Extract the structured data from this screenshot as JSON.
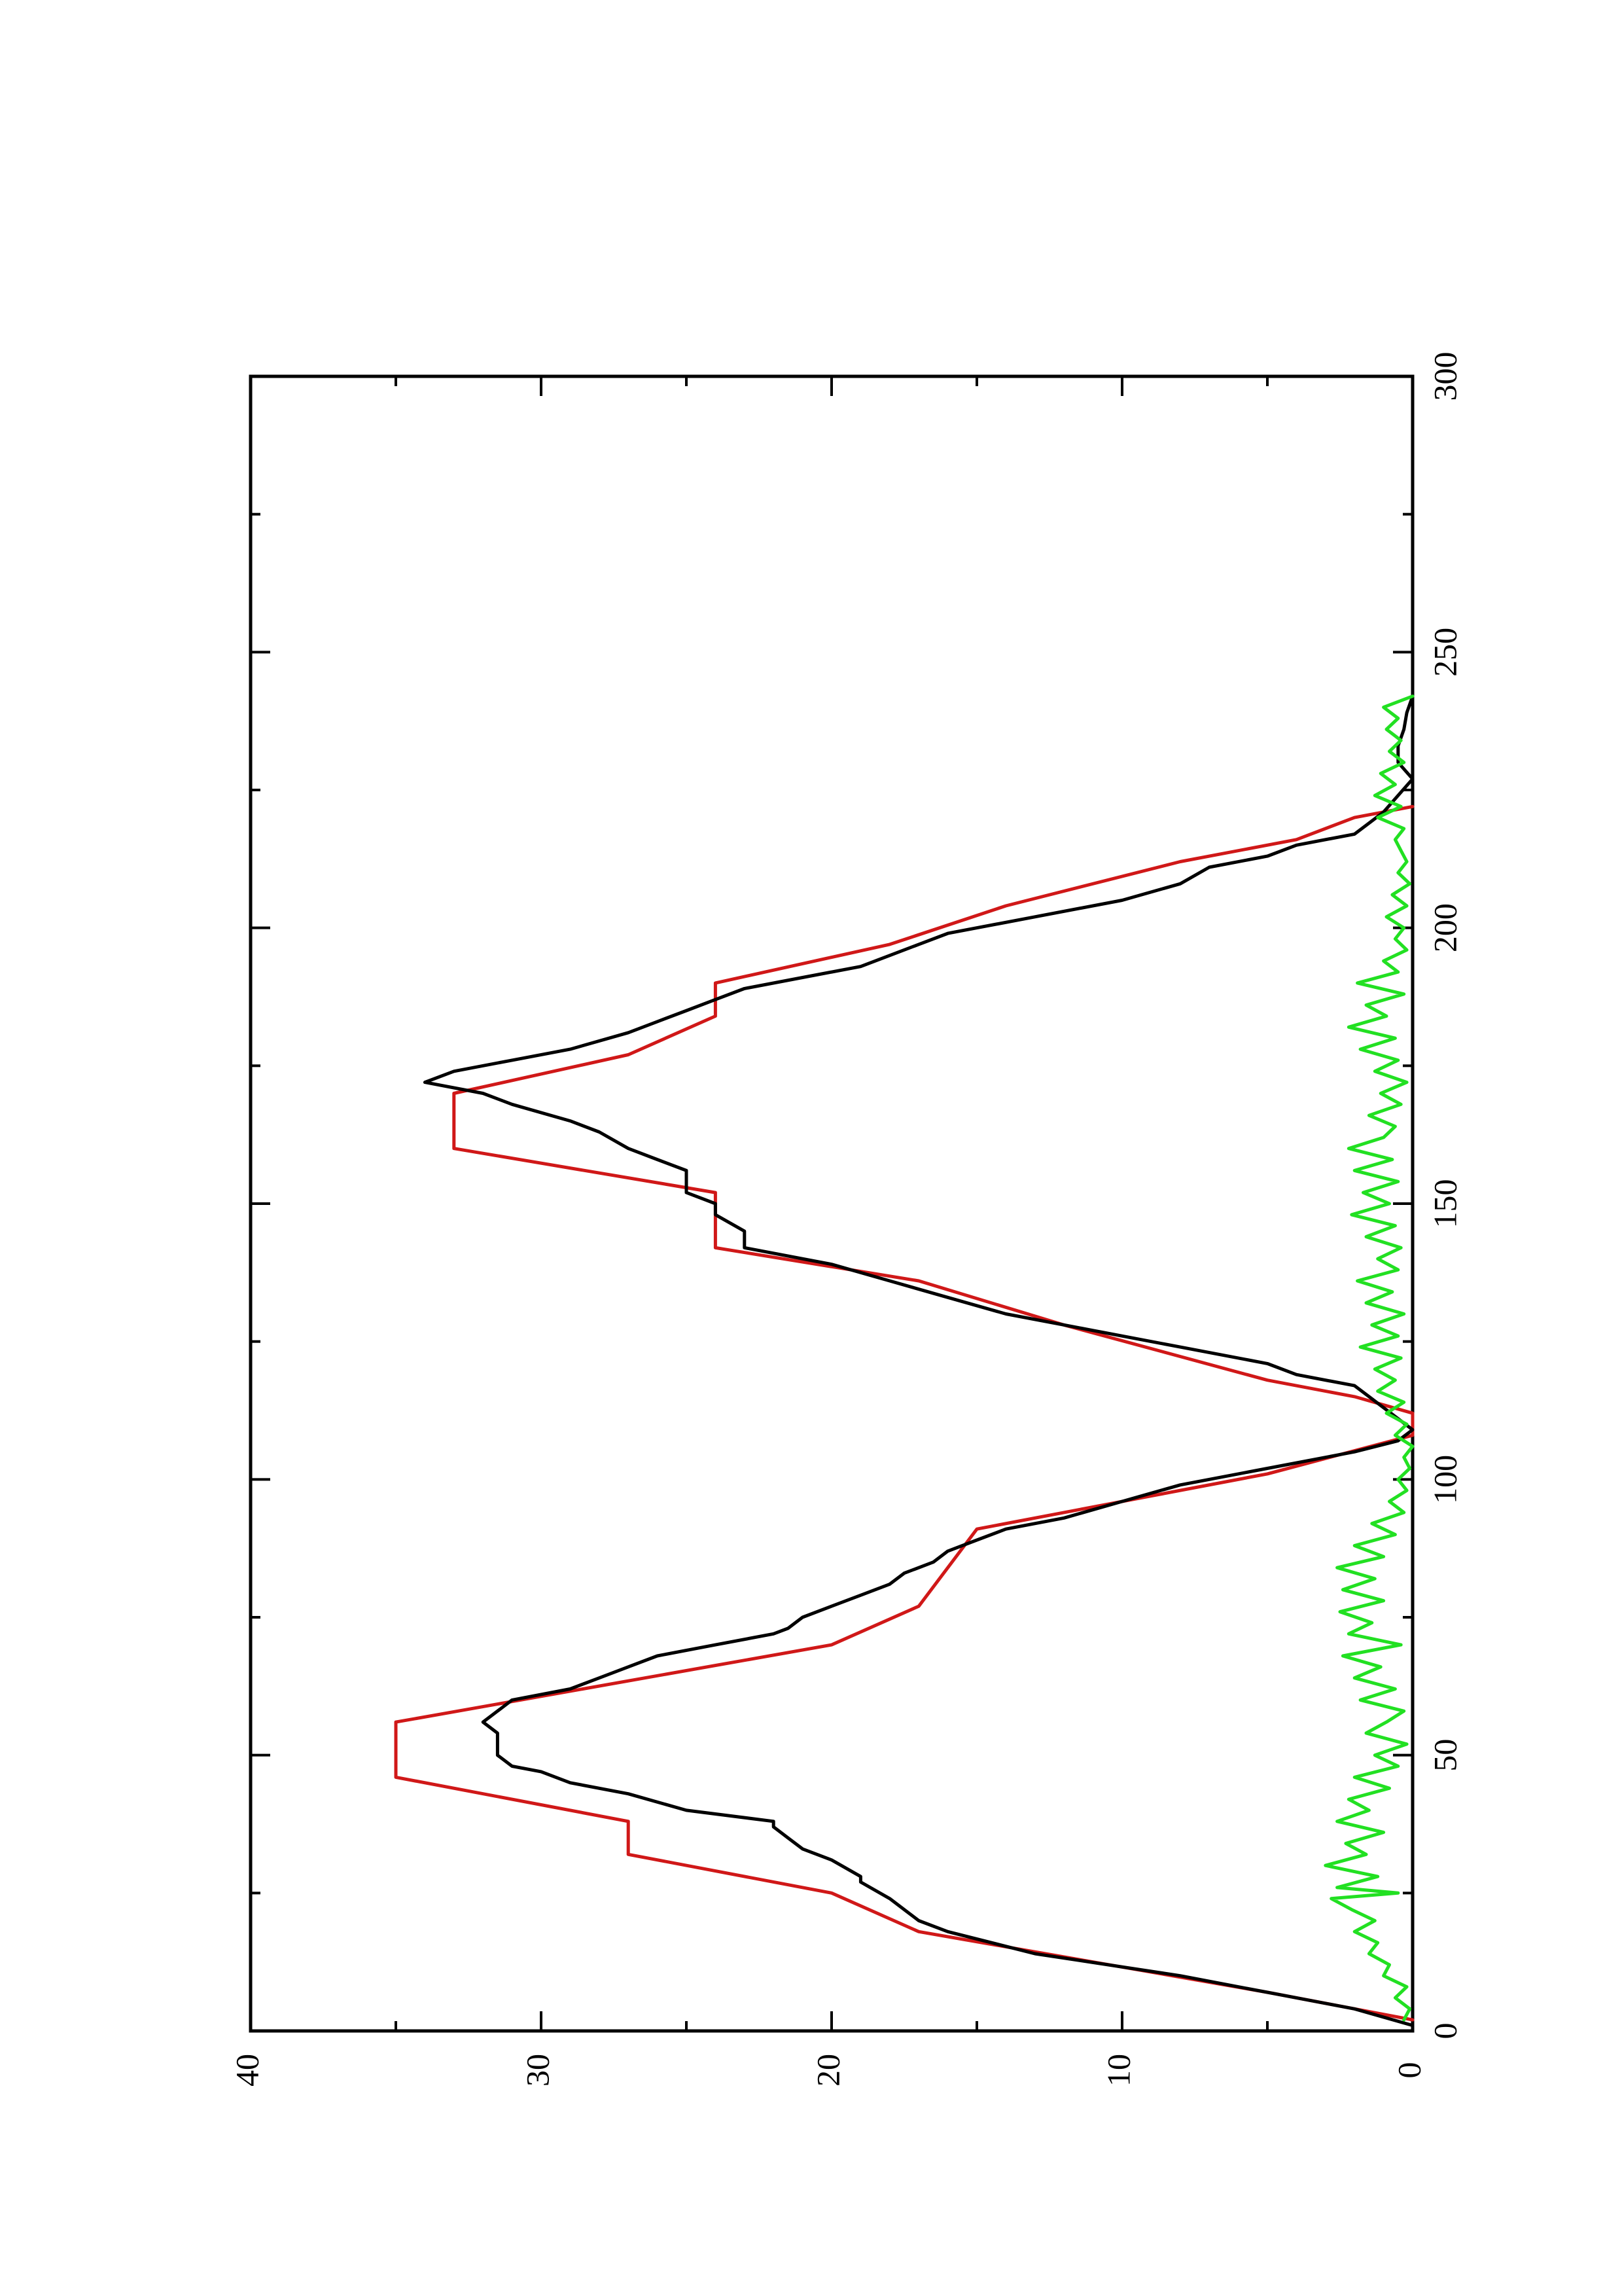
{
  "chart_data": {
    "type": "line",
    "title": "",
    "xlabel": "",
    "ylabel": "",
    "xlim": [
      0,
      300
    ],
    "ylim": [
      0,
      40
    ],
    "x_ticks": [
      0,
      50,
      100,
      150,
      200,
      250,
      300
    ],
    "y_ticks": [
      0,
      10,
      20,
      30,
      40
    ],
    "x_tick_labels": [
      "0",
      "50",
      "100",
      "150",
      "200",
      "250",
      "300"
    ],
    "y_tick_labels": [
      "0",
      "10",
      "20",
      "30",
      "40"
    ],
    "orientation": "rotated 90 degrees counter-clockwise on the page",
    "grid": false,
    "legend": "none",
    "series": [
      {
        "color": "#d01818",
        "step": true,
        "x": [
          2,
          7,
          7,
          18,
          18,
          25,
          25,
          32,
          32,
          38,
          38,
          46,
          46,
          56,
          56,
          70,
          70,
          77,
          77,
          91,
          91,
          101,
          101,
          108,
          112,
          115,
          115,
          118,
          118,
          128,
          128,
          136,
          136,
          142,
          142,
          152,
          152,
          160,
          160,
          170,
          170,
          177,
          177,
          184,
          184,
          190,
          190,
          197,
          197,
          204,
          204,
          212,
          212,
          216,
          216,
          220,
          220,
          222
        ],
        "y": [
          0,
          5,
          5,
          17,
          17,
          20,
          20,
          27,
          27,
          27,
          27,
          35,
          35,
          35,
          35,
          20,
          20,
          17,
          17,
          15,
          15,
          5,
          5,
          0,
          0,
          2,
          2,
          5,
          5,
          12,
          12,
          17,
          17,
          24,
          24,
          24,
          24,
          33,
          33,
          33,
          33,
          27,
          27,
          24,
          24,
          24,
          24,
          18,
          18,
          14,
          14,
          8,
          8,
          4,
          4,
          2,
          2,
          0
        ]
      },
      {
        "color": "#000000",
        "step": false,
        "x": [
          1,
          4,
          7,
          10,
          14,
          18,
          20,
          24,
          27,
          28,
          31,
          33,
          35,
          37,
          38,
          40,
          43,
          45,
          47,
          48,
          50,
          52,
          54,
          56,
          58,
          60,
          62,
          64,
          66,
          68,
          70,
          72,
          73,
          75,
          77,
          79,
          81,
          83,
          85,
          87,
          89,
          91,
          93,
          96,
          99,
          102,
          105,
          107,
          109,
          111,
          113,
          115,
          117,
          119,
          121,
          124,
          127,
          130,
          133,
          136,
          139,
          141,
          142,
          145,
          148,
          150,
          152,
          154,
          156,
          158,
          160,
          163,
          165,
          168,
          170,
          172,
          174,
          176,
          178,
          181,
          183,
          185,
          187,
          189,
          191,
          193,
          195,
          197,
          199,
          202,
          205,
          208,
          211,
          213,
          215,
          217,
          219,
          221,
          224,
          227,
          230,
          233,
          236,
          239,
          242
        ],
        "y": [
          0,
          2,
          5,
          8,
          13,
          16,
          17,
          18,
          19,
          19,
          20,
          21,
          21.5,
          22,
          22,
          25,
          27,
          29,
          30,
          31,
          31.5,
          31.5,
          31.5,
          32,
          31.5,
          31,
          29,
          28,
          27,
          26,
          24,
          22,
          21.5,
          21,
          20,
          19,
          18,
          17.5,
          16.5,
          16,
          15,
          14,
          12,
          10,
          8,
          5,
          2,
          0.5,
          0,
          0.5,
          1,
          1.5,
          2,
          4,
          5,
          8,
          11,
          14,
          16,
          18,
          20,
          22,
          23,
          23,
          24,
          24,
          25,
          25,
          25,
          26,
          27,
          28,
          29,
          31,
          32,
          34,
          33,
          31,
          29,
          27,
          26,
          25,
          24,
          23,
          21,
          19,
          18,
          17,
          16,
          13,
          10,
          8,
          7,
          5,
          4,
          2,
          1.5,
          1,
          0.5,
          0,
          0.5,
          0.5,
          0.3,
          0.2,
          0
        ]
      },
      {
        "color": "#22e022",
        "step": false,
        "x": [
          2,
          4,
          6,
          8,
          10,
          12,
          14,
          16,
          18,
          20,
          22,
          24,
          25,
          26,
          28,
          30,
          32,
          34,
          36,
          38,
          40,
          42,
          44,
          46,
          48,
          50,
          52,
          54,
          56,
          58,
          60,
          62,
          64,
          66,
          68,
          70,
          72,
          74,
          76,
          78,
          80,
          82,
          84,
          86,
          88,
          90,
          92,
          94,
          96,
          98,
          100,
          102,
          104,
          106,
          108,
          110,
          112,
          114,
          116,
          118,
          120,
          122,
          124,
          126,
          128,
          130,
          132,
          134,
          136,
          138,
          140,
          142,
          144,
          146,
          148,
          150,
          152,
          154,
          156,
          158,
          160,
          162,
          164,
          166,
          168,
          170,
          172,
          174,
          176,
          178,
          180,
          182,
          184,
          186,
          188,
          190,
          192,
          194,
          196,
          198,
          200,
          202,
          204,
          206,
          208,
          210,
          212,
          214,
          216,
          218,
          220,
          222,
          224,
          226,
          228,
          230,
          232,
          234,
          236,
          238,
          240,
          242
        ],
        "y": [
          0.3,
          0.1,
          0.6,
          0.2,
          1.0,
          0.8,
          1.5,
          1.2,
          2.0,
          1.3,
          2.1,
          2.8,
          0.5,
          2.6,
          1.2,
          3.0,
          1.6,
          2.3,
          1.0,
          2.6,
          1.5,
          2.2,
          0.8,
          2.0,
          0.5,
          1.3,
          0.2,
          1.6,
          0.9,
          0.3,
          1.8,
          0.6,
          2.0,
          1.1,
          2.4,
          0.4,
          2.2,
          1.4,
          2.5,
          1.0,
          2.4,
          1.3,
          2.6,
          1.0,
          2.0,
          0.6,
          1.4,
          0.3,
          0.8,
          0.2,
          0.5,
          0.1,
          0.3,
          0.0,
          0.6,
          0.2,
          0.9,
          0.3,
          1.2,
          0.6,
          1.3,
          0.4,
          1.8,
          0.5,
          1.4,
          0.3,
          1.6,
          0.7,
          1.9,
          0.5,
          1.2,
          0.4,
          1.6,
          0.6,
          2.1,
          0.8,
          1.7,
          0.5,
          2.0,
          0.7,
          2.2,
          1.0,
          0.6,
          1.5,
          0.4,
          1.1,
          0.2,
          1.3,
          0.5,
          1.8,
          0.6,
          2.2,
          0.9,
          1.6,
          0.3,
          1.9,
          0.5,
          1.0,
          0.2,
          0.6,
          0.3,
          0.9,
          0.2,
          0.7,
          0.1,
          0.5,
          0.2,
          0.4,
          0.6,
          0.3,
          1.2,
          0.4,
          1.3,
          0.6,
          1.1,
          0.3,
          0.8,
          0.4,
          0.9,
          0.5,
          1.0,
          0.0
        ]
      }
    ]
  }
}
